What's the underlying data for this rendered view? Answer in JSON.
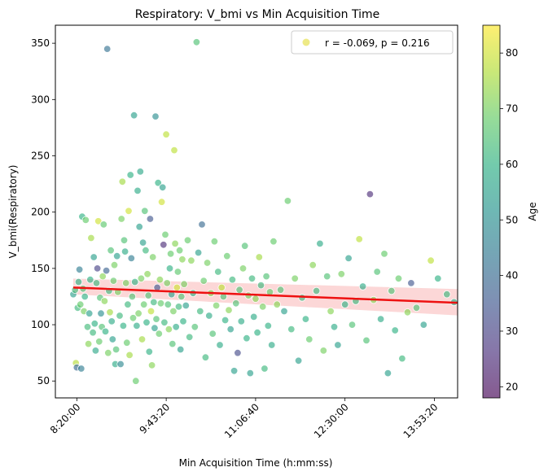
{
  "chart_data": {
    "type": "scatter",
    "title": "Respiratory: V_bmi vs Min Acquisition Time",
    "xlabel": "Min Acquisition Time (h:mm:ss)",
    "ylabel": "V_bmi(Respiratory)",
    "x_unit": "seconds since midnight",
    "xlim": [
      28800,
      51300
    ],
    "ylim": [
      35,
      366
    ],
    "x_ticks": [
      {
        "value": 30000,
        "label": "8:20:00"
      },
      {
        "value": 35000,
        "label": "9:43:20"
      },
      {
        "value": 40000,
        "label": "11:06:40"
      },
      {
        "value": 45000,
        "label": "12:30:00"
      },
      {
        "value": 50000,
        "label": "13:53:20"
      }
    ],
    "y_ticks": [
      50,
      100,
      150,
      200,
      250,
      300,
      350
    ],
    "legend": {
      "label": "r = -0.069, p = 0.216",
      "position": "top-right",
      "color": "#e8e35e"
    },
    "colorbar": {
      "label": "Age",
      "min": 18,
      "max": 85,
      "ticks": [
        20,
        30,
        40,
        50,
        60,
        70,
        80
      ],
      "colormap": "viridis"
    },
    "regression": {
      "x": [
        29800,
        52800
      ],
      "y": [
        133,
        118.5
      ],
      "ci_lower": [
        127,
        107
      ],
      "ci_upper": [
        141,
        131
      ],
      "color": "#ee1111",
      "band_color": "#f9b0b0"
    },
    "points": [
      [
        29800,
        127,
        55
      ],
      [
        29900,
        131,
        63
      ],
      [
        29950,
        66,
        77
      ],
      [
        30000,
        62,
        40
      ],
      [
        30050,
        115,
        62
      ],
      [
        30100,
        138,
        60
      ],
      [
        30150,
        149,
        45
      ],
      [
        30200,
        118,
        68
      ],
      [
        30250,
        61,
        45
      ],
      [
        30300,
        196,
        60
      ],
      [
        30350,
        132,
        65
      ],
      [
        30400,
        112,
        70
      ],
      [
        30450,
        125,
        60
      ],
      [
        30500,
        193,
        68
      ],
      [
        30600,
        98,
        63
      ],
      [
        30650,
        83,
        72
      ],
      [
        30700,
        110,
        55
      ],
      [
        30750,
        140,
        60
      ],
      [
        30800,
        177,
        75
      ],
      [
        30900,
        93,
        62
      ],
      [
        30950,
        160,
        55
      ],
      [
        31000,
        101,
        60
      ],
      [
        31050,
        77,
        57
      ],
      [
        31100,
        137,
        62
      ],
      [
        31150,
        150,
        30
      ],
      [
        31200,
        192,
        80
      ],
      [
        31250,
        85,
        68
      ],
      [
        31300,
        124,
        65
      ],
      [
        31350,
        110,
        50
      ],
      [
        31400,
        98,
        65
      ],
      [
        31450,
        143,
        72
      ],
      [
        31500,
        189,
        67
      ],
      [
        31550,
        121,
        72
      ],
      [
        31600,
        94,
        60
      ],
      [
        31650,
        148,
        38
      ],
      [
        31700,
        345,
        42
      ],
      [
        31750,
        75,
        70
      ],
      [
        31800,
        130,
        62
      ],
      [
        31850,
        111,
        75
      ],
      [
        31900,
        166,
        65
      ],
      [
        31950,
        103,
        58
      ],
      [
        32000,
        87,
        55
      ],
      [
        32050,
        139,
        68
      ],
      [
        32100,
        153,
        70
      ],
      [
        32150,
        65,
        58
      ],
      [
        32200,
        78,
        65
      ],
      [
        32250,
        161,
        55
      ],
      [
        32300,
        129,
        70
      ],
      [
        32400,
        108,
        62
      ],
      [
        32450,
        65,
        48
      ],
      [
        32500,
        194,
        70
      ],
      [
        32550,
        227,
        75
      ],
      [
        32600,
        99,
        60
      ],
      [
        32650,
        175,
        65
      ],
      [
        32700,
        165,
        58
      ],
      [
        32750,
        137,
        70
      ],
      [
        32800,
        84,
        68
      ],
      [
        32850,
        118,
        62
      ],
      [
        32900,
        201,
        80
      ],
      [
        32950,
        73,
        75
      ],
      [
        33000,
        233,
        60
      ],
      [
        33050,
        159,
        45
      ],
      [
        33100,
        125,
        65
      ],
      [
        33150,
        106,
        68
      ],
      [
        33200,
        286,
        55
      ],
      [
        33250,
        138,
        60
      ],
      [
        33300,
        50,
        68
      ],
      [
        33350,
        99,
        58
      ],
      [
        33400,
        219,
        58
      ],
      [
        33450,
        110,
        70
      ],
      [
        33500,
        187,
        55
      ],
      [
        33550,
        236,
        57
      ],
      [
        33600,
        141,
        70
      ],
      [
        33650,
        87,
        75
      ],
      [
        33700,
        173,
        55
      ],
      [
        33750,
        118,
        68
      ],
      [
        33800,
        201,
        65
      ],
      [
        33850,
        166,
        62
      ],
      [
        33900,
        102,
        60
      ],
      [
        33950,
        145,
        72
      ],
      [
        34000,
        126,
        65
      ],
      [
        34050,
        76,
        60
      ],
      [
        34100,
        194,
        35
      ],
      [
        34150,
        112,
        78
      ],
      [
        34200,
        64,
        72
      ],
      [
        34250,
        160,
        70
      ],
      [
        34300,
        120,
        62
      ],
      [
        34350,
        97,
        55
      ],
      [
        34400,
        285,
        50
      ],
      [
        34450,
        105,
        65
      ],
      [
        34500,
        133,
        35
      ],
      [
        34550,
        226,
        60
      ],
      [
        34600,
        92,
        68
      ],
      [
        34650,
        140,
        72
      ],
      [
        34700,
        119,
        68
      ],
      [
        34750,
        209,
        80
      ],
      [
        34800,
        222,
        55
      ],
      [
        34850,
        171,
        25
      ],
      [
        34900,
        102,
        62
      ],
      [
        34950,
        180,
        68
      ],
      [
        35000,
        269,
        78
      ],
      [
        35050,
        137,
        70
      ],
      [
        35100,
        118,
        65
      ],
      [
        35150,
        96,
        72
      ],
      [
        35200,
        150,
        60
      ],
      [
        35250,
        163,
        68
      ],
      [
        35300,
        127,
        55
      ],
      [
        35350,
        83,
        65
      ],
      [
        35400,
        112,
        70
      ],
      [
        35450,
        255,
        78
      ],
      [
        35500,
        172,
        72
      ],
      [
        35550,
        98,
        58
      ],
      [
        35600,
        133,
        80
      ],
      [
        35650,
        147,
        67
      ],
      [
        35700,
        116,
        62
      ],
      [
        35750,
        166,
        68
      ],
      [
        35800,
        78,
        55
      ],
      [
        35850,
        125,
        65
      ],
      [
        35900,
        158,
        72
      ],
      [
        35950,
        103,
        60
      ],
      [
        36000,
        136,
        70
      ],
      [
        36100,
        117,
        55
      ],
      [
        36200,
        175,
        68
      ],
      [
        36300,
        89,
        62
      ],
      [
        36400,
        157,
        72
      ],
      [
        36500,
        128,
        60
      ],
      [
        36600,
        98,
        65
      ],
      [
        36700,
        351,
        65
      ],
      [
        36800,
        164,
        55
      ],
      [
        36900,
        112,
        62
      ],
      [
        37000,
        189,
        40
      ],
      [
        37100,
        139,
        68
      ],
      [
        37200,
        71,
        62
      ],
      [
        37300,
        155,
        70
      ],
      [
        37400,
        108,
        58
      ],
      [
        37500,
        128,
        72
      ],
      [
        37600,
        92,
        65
      ],
      [
        37700,
        174,
        68
      ],
      [
        37800,
        117,
        70
      ],
      [
        37900,
        147,
        62
      ],
      [
        38000,
        82,
        58
      ],
      [
        38100,
        133,
        78
      ],
      [
        38200,
        125,
        65
      ],
      [
        38300,
        104,
        60
      ],
      [
        38400,
        161,
        68
      ],
      [
        38500,
        113,
        72
      ],
      [
        38600,
        96,
        55
      ],
      [
        38700,
        140,
        62
      ],
      [
        38800,
        59,
        55
      ],
      [
        38900,
        119,
        65
      ],
      [
        39000,
        75,
        32
      ],
      [
        39100,
        131,
        65
      ],
      [
        39200,
        103,
        58
      ],
      [
        39300,
        150,
        70
      ],
      [
        39400,
        170,
        65
      ],
      [
        39500,
        88,
        60
      ],
      [
        39600,
        126,
        70
      ],
      [
        39700,
        57,
        55
      ],
      [
        39800,
        141,
        62
      ],
      [
        39900,
        107,
        58
      ],
      [
        40000,
        123,
        72
      ],
      [
        40100,
        93,
        60
      ],
      [
        40200,
        160,
        75
      ],
      [
        40300,
        135,
        62
      ],
      [
        40400,
        116,
        70
      ],
      [
        40500,
        61,
        62
      ],
      [
        40600,
        143,
        65
      ],
      [
        40700,
        99,
        60
      ],
      [
        40800,
        129,
        68
      ],
      [
        40900,
        82,
        58
      ],
      [
        41000,
        174,
        68
      ],
      [
        41200,
        118,
        72
      ],
      [
        41400,
        131,
        65
      ],
      [
        41600,
        112,
        55
      ],
      [
        41800,
        210,
        68
      ],
      [
        42000,
        96,
        62
      ],
      [
        42200,
        141,
        70
      ],
      [
        42400,
        68,
        55
      ],
      [
        42600,
        124,
        62
      ],
      [
        42800,
        105,
        60
      ],
      [
        43000,
        87,
        68
      ],
      [
        43200,
        153,
        72
      ],
      [
        43400,
        130,
        62
      ],
      [
        43600,
        172,
        58
      ],
      [
        43800,
        77,
        70
      ],
      [
        44000,
        143,
        65
      ],
      [
        44200,
        112,
        72
      ],
      [
        44400,
        98,
        58
      ],
      [
        44600,
        82,
        55
      ],
      [
        44800,
        145,
        70
      ],
      [
        45000,
        118,
        60
      ],
      [
        45200,
        159,
        55
      ],
      [
        45400,
        100,
        65
      ],
      [
        45600,
        121,
        62
      ],
      [
        45800,
        176,
        78
      ],
      [
        46000,
        134,
        58
      ],
      [
        46200,
        86,
        65
      ],
      [
        46400,
        216,
        25
      ],
      [
        46600,
        122,
        72
      ],
      [
        46800,
        147,
        65
      ],
      [
        47000,
        105,
        58
      ],
      [
        47200,
        163,
        68
      ],
      [
        47400,
        57,
        55
      ],
      [
        47600,
        130,
        65
      ],
      [
        47800,
        95,
        60
      ],
      [
        48000,
        141,
        68
      ],
      [
        48200,
        70,
        62
      ],
      [
        48500,
        111,
        72
      ],
      [
        48700,
        137,
        35
      ],
      [
        49000,
        115,
        65
      ],
      [
        49400,
        100,
        55
      ],
      [
        49800,
        157,
        78
      ],
      [
        50200,
        141,
        60
      ],
      [
        50700,
        127,
        62
      ],
      [
        51100,
        120,
        58
      ]
    ]
  }
}
